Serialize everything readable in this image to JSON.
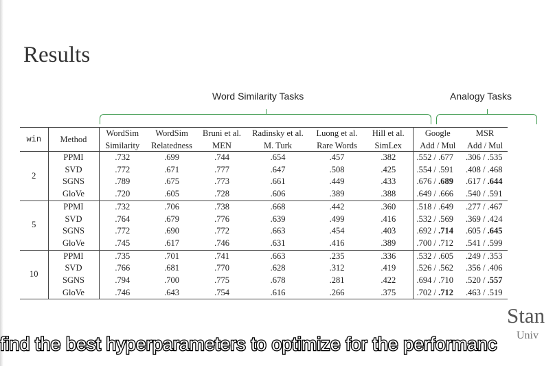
{
  "title": "Results",
  "groups": {
    "word_similarity": "Word Similarity Tasks",
    "analogy": "Analogy Tasks"
  },
  "header": {
    "win": "win",
    "method": "Method",
    "cols": [
      {
        "l1": "WordSim",
        "l2": "Similarity"
      },
      {
        "l1": "WordSim",
        "l2": "Relatedness"
      },
      {
        "l1": "Bruni et al.",
        "l2": "MEN"
      },
      {
        "l1": "Radinsky et al.",
        "l2": "M. Turk"
      },
      {
        "l1": "Luong et al.",
        "l2": "Rare Words"
      },
      {
        "l1": "Hill et al.",
        "l2": "SimLex"
      },
      {
        "l1": "Google",
        "l2": "Add / Mul"
      },
      {
        "l1": "MSR",
        "l2": "Add / Mul"
      }
    ]
  },
  "rows": [
    {
      "win": "2",
      "method": "PPMI",
      "v": [
        ".732",
        ".699",
        ".744",
        ".654",
        ".457",
        ".382"
      ],
      "b": [
        1
      ],
      "ga": ".552",
      "gm": ".677",
      "ma": ".306",
      "mm": ".535",
      "ab": []
    },
    {
      "win": "2",
      "method": "SVD",
      "v": [
        ".772",
        ".671",
        ".777",
        ".647",
        ".508",
        ".425"
      ],
      "b": [
        2,
        4
      ],
      "ga": ".554",
      "gm": ".591",
      "ma": ".408",
      "mm": ".468",
      "ab": []
    },
    {
      "win": "2",
      "method": "SGNS",
      "v": [
        ".789",
        ".675",
        ".773",
        ".661",
        ".449",
        ".433"
      ],
      "b": [
        0,
        3,
        5
      ],
      "ga": ".676",
      "gm": ".689",
      "ma": ".617",
      "mm": ".644",
      "ab": [
        "gm",
        "mm"
      ]
    },
    {
      "win": "2",
      "method": "GloVe",
      "v": [
        ".720",
        ".605",
        ".728",
        ".606",
        ".389",
        ".388"
      ],
      "b": [],
      "ga": ".649",
      "gm": ".666",
      "ma": ".540",
      "mm": ".591",
      "ab": []
    },
    {
      "win": "5",
      "method": "PPMI",
      "v": [
        ".732",
        ".706",
        ".738",
        ".668",
        ".442",
        ".360"
      ],
      "b": [
        1,
        3
      ],
      "ga": ".518",
      "gm": ".649",
      "ma": ".277",
      "mm": ".467",
      "ab": []
    },
    {
      "win": "5",
      "method": "SVD",
      "v": [
        ".764",
        ".679",
        ".776",
        ".639",
        ".499",
        ".416"
      ],
      "b": [
        2,
        4,
        5
      ],
      "ga": ".532",
      "gm": ".569",
      "ma": ".369",
      "mm": ".424",
      "ab": []
    },
    {
      "win": "5",
      "method": "SGNS",
      "v": [
        ".772",
        ".690",
        ".772",
        ".663",
        ".454",
        ".403"
      ],
      "b": [
        0
      ],
      "ga": ".692",
      "gm": ".714",
      "ma": ".605",
      "mm": ".645",
      "ab": [
        "gm",
        "mm"
      ]
    },
    {
      "win": "5",
      "method": "GloVe",
      "v": [
        ".745",
        ".617",
        ".746",
        ".631",
        ".416",
        ".389"
      ],
      "b": [],
      "ga": ".700",
      "gm": ".712",
      "ma": ".541",
      "mm": ".599",
      "ab": []
    },
    {
      "win": "10",
      "method": "PPMI",
      "v": [
        ".735",
        ".701",
        ".741",
        ".663",
        ".235",
        ".336"
      ],
      "b": [
        1
      ],
      "ga": ".532",
      "gm": ".605",
      "ma": ".249",
      "mm": ".353",
      "ab": []
    },
    {
      "win": "10",
      "method": "SVD",
      "v": [
        ".766",
        ".681",
        ".770",
        ".628",
        ".312",
        ".419"
      ],
      "b": [
        4
      ],
      "ga": ".526",
      "gm": ".562",
      "ma": ".356",
      "mm": ".406",
      "ab": []
    },
    {
      "win": "10",
      "method": "SGNS",
      "v": [
        ".794",
        ".700",
        ".775",
        ".678",
        ".281",
        ".422"
      ],
      "b": [
        0,
        2,
        3,
        5
      ],
      "ga": ".694",
      "gm": ".710",
      "ma": ".520",
      "mm": ".557",
      "ab": [
        "mm"
      ]
    },
    {
      "win": "10",
      "method": "GloVe",
      "v": [
        ".746",
        ".643",
        ".754",
        ".616",
        ".266",
        ".375"
      ],
      "b": [],
      "ga": ".702",
      "gm": ".712",
      "ma": ".463",
      "mm": ".519",
      "ab": [
        "gm"
      ]
    }
  ],
  "logo_text": "Stan",
  "logo_subtext": "Univ",
  "caption": "find the best hyperparameters to optimize for the performanc"
}
